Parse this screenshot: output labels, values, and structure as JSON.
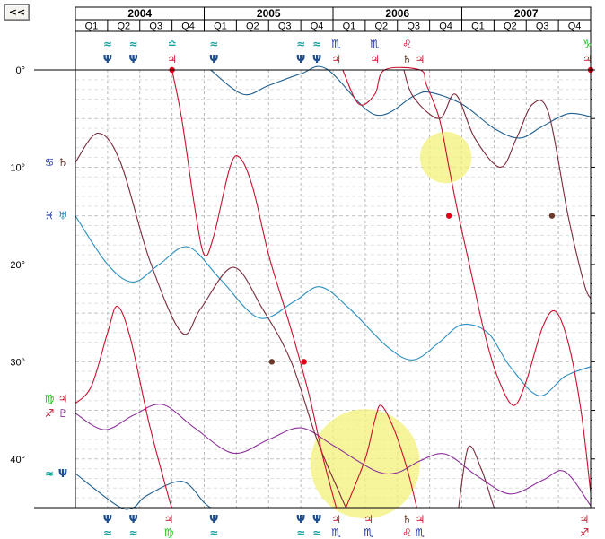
{
  "nav": {
    "back_label": "<<"
  },
  "chart_data": {
    "type": "line",
    "title": "",
    "xlabel": "",
    "ylabel": "",
    "years": [
      "2004",
      "2005",
      "2006",
      "2007"
    ],
    "quarters": [
      "Q1",
      "Q2",
      "Q3",
      "Q4"
    ],
    "x_unit": "quarter index from start of 2004",
    "xlim": [
      0,
      16
    ],
    "ylim": [
      0,
      45
    ],
    "y_ticks": [
      {
        "v": 0,
        "label": "0°"
      },
      {
        "v": 10,
        "label": "10°"
      },
      {
        "v": 20,
        "label": "20°"
      },
      {
        "v": 30,
        "label": "30°"
      },
      {
        "v": 40,
        "label": "40°"
      }
    ],
    "grid": true,
    "series": [
      {
        "color": "#1f5f8f",
        "points": [
          [
            0,
            41.5
          ],
          [
            1.3,
            44.8
          ],
          [
            1.8,
            45
          ],
          [
            2.2,
            43.8
          ],
          [
            3.3,
            42.3
          ],
          [
            4.0,
            44.5
          ],
          [
            4.2,
            45
          ]
        ],
        "points2": [
          [
            4.2,
            0
          ],
          [
            5.2,
            2.5
          ],
          [
            6.0,
            1.6
          ],
          [
            7.0,
            0.4
          ],
          [
            7.8,
            -0.1
          ],
          [
            9.3,
            4.6
          ],
          [
            10.5,
            2.7
          ],
          [
            11.0,
            2.3
          ],
          [
            12.0,
            3.5
          ],
          [
            13.0,
            6.0
          ],
          [
            13.8,
            7.0
          ],
          [
            14.5,
            5.8
          ],
          [
            15.3,
            4.5
          ],
          [
            16,
            4.8
          ]
        ]
      },
      {
        "color": "#2a8fc0",
        "points": [
          [
            0,
            15
          ],
          [
            1.0,
            20
          ],
          [
            1.8,
            21.8
          ],
          [
            2.6,
            20
          ],
          [
            3.5,
            18.2
          ],
          [
            4.5,
            21.5
          ],
          [
            5.7,
            25.5
          ],
          [
            6.8,
            23.8
          ],
          [
            7.6,
            22.3
          ],
          [
            8.5,
            24.5
          ],
          [
            9.7,
            28.5
          ],
          [
            10.5,
            29.8
          ],
          [
            11.3,
            28.0
          ],
          [
            12.0,
            26.2
          ],
          [
            12.8,
            27.0
          ],
          [
            13.5,
            30.5
          ],
          [
            14.4,
            33.5
          ],
          [
            15.2,
            31.5
          ],
          [
            16,
            30.5
          ]
        ]
      },
      {
        "color": "#8b2f99",
        "points": [
          [
            0,
            35.3
          ],
          [
            0.9,
            37.0
          ],
          [
            1.8,
            35.5
          ],
          [
            2.7,
            34.4
          ],
          [
            3.7,
            36.8
          ],
          [
            4.9,
            39.4
          ],
          [
            6.0,
            38.0
          ],
          [
            7.0,
            36.8
          ],
          [
            8.0,
            38.6
          ],
          [
            9.3,
            41.2
          ],
          [
            10.0,
            41.4
          ],
          [
            10.7,
            40.2
          ],
          [
            11.5,
            39.5
          ],
          [
            12.5,
            41.8
          ],
          [
            13.5,
            43.6
          ],
          [
            14.5,
            42.2
          ],
          [
            15.2,
            41.3
          ],
          [
            16,
            44.8
          ]
        ]
      },
      {
        "color": "#7a2a3a",
        "points": [
          [
            0,
            9.5
          ],
          [
            0.7,
            6.5
          ],
          [
            1.4,
            9.5
          ],
          [
            2.3,
            19.5
          ],
          [
            3.3,
            27.0
          ],
          [
            3.9,
            24.5
          ],
          [
            4.9,
            20.3
          ],
          [
            5.8,
            24.5
          ],
          [
            6.7,
            30.0
          ],
          [
            7.5,
            38.0
          ],
          [
            8.2,
            43.5
          ],
          [
            8.4,
            45
          ]
        ],
        "points2": [
          [
            10.2,
            0
          ],
          [
            10.5,
            2.8
          ],
          [
            11.3,
            5.0
          ],
          [
            11.8,
            2.5
          ],
          [
            12.4,
            7.0
          ],
          [
            13.2,
            10.0
          ],
          [
            13.7,
            7.0
          ],
          [
            14.2,
            3.5
          ],
          [
            14.7,
            4.5
          ],
          [
            15.3,
            15.0
          ],
          [
            15.8,
            22.0
          ],
          [
            16,
            23.5
          ]
        ],
        "points3": [
          [
            11.9,
            45
          ],
          [
            12.2,
            38.8
          ],
          [
            12.6,
            41.0
          ],
          [
            12.9,
            44.0
          ],
          [
            13.0,
            45
          ]
        ]
      },
      {
        "color": "#c8102e",
        "points": [
          [
            0,
            34.3
          ],
          [
            0.5,
            32.5
          ],
          [
            1.0,
            27.0
          ],
          [
            1.3,
            24.3
          ],
          [
            1.7,
            27.5
          ],
          [
            2.3,
            36.5
          ],
          [
            2.9,
            44.0
          ],
          [
            3.0,
            45
          ]
        ],
        "points2": [
          [
            3.0,
            0
          ],
          [
            3.3,
            5.0
          ],
          [
            3.7,
            14.0
          ],
          [
            4.0,
            19.0
          ],
          [
            4.3,
            17.0
          ],
          [
            4.8,
            10.0
          ],
          [
            5.1,
            9.0
          ],
          [
            5.5,
            12.0
          ],
          [
            6.0,
            19.0
          ],
          [
            6.5,
            24.5
          ],
          [
            6.9,
            29.0
          ],
          [
            7.3,
            34.0
          ],
          [
            7.7,
            40.0
          ],
          [
            8.1,
            45
          ]
        ],
        "points3": [
          [
            8.3,
            0
          ],
          [
            8.8,
            3.5
          ],
          [
            9.3,
            2.5
          ],
          [
            9.6,
            0
          ],
          [
            10.7,
            0
          ],
          [
            10.9,
            1.5
          ],
          [
            11.3,
            5.0
          ],
          [
            11.6,
            10.0
          ],
          [
            11.9,
            15.0
          ],
          [
            12.3,
            21.0
          ],
          [
            12.7,
            27.0
          ],
          [
            13.1,
            31.5
          ],
          [
            13.6,
            34.5
          ],
          [
            14.0,
            32.0
          ],
          [
            14.5,
            26.5
          ],
          [
            14.9,
            24.8
          ],
          [
            15.3,
            28.0
          ],
          [
            15.7,
            35.0
          ],
          [
            16,
            43.5
          ]
        ],
        "points4": [
          [
            8.4,
            45
          ],
          [
            9.0,
            40.0
          ],
          [
            9.3,
            36.0
          ],
          [
            9.5,
            34.5
          ],
          [
            9.9,
            37.0
          ],
          [
            10.3,
            41.0
          ],
          [
            10.6,
            45
          ]
        ]
      }
    ],
    "dots": [
      {
        "x": 3.0,
        "y": 0,
        "color": "#e0001a"
      },
      {
        "x": 6.1,
        "y": 30,
        "color": "#6b3a2a"
      },
      {
        "x": 7.1,
        "y": 30,
        "color": "#e0001a"
      },
      {
        "x": 11.6,
        "y": 15,
        "color": "#e0001a"
      },
      {
        "x": 14.8,
        "y": 15,
        "color": "#6b3a2a"
      },
      {
        "x": 16,
        "y": 0,
        "color": "#e0001a"
      }
    ],
    "highlights": [
      {
        "x": 11.5,
        "y": 9,
        "r": 0.8
      },
      {
        "x": 9.0,
        "y": 40.5,
        "r": 1.7
      }
    ],
    "top_markers": [
      {
        "x": 1.0,
        "sign": "≈",
        "planet": "Ψ",
        "sc": "#1aa0a0",
        "pc": "#1f4f8f"
      },
      {
        "x": 1.8,
        "sign": "≈",
        "planet": "Ψ",
        "sc": "#1aa0a0",
        "pc": "#1f4f8f"
      },
      {
        "x": 3.0,
        "sign": "≏",
        "planet": "♃",
        "sc": "#1aa0a0",
        "pc": "#c8102e"
      },
      {
        "x": 4.3,
        "sign": "≈",
        "planet": "Ψ",
        "sc": "#1aa0a0",
        "pc": "#1f4f8f"
      },
      {
        "x": 7.0,
        "sign": "≈",
        "planet": "Ψ",
        "sc": "#1aa0a0",
        "pc": "#1f4f8f"
      },
      {
        "x": 7.5,
        "sign": "≈",
        "planet": "Ψ",
        "sc": "#1aa0a0",
        "pc": "#1f4f8f"
      },
      {
        "x": 8.1,
        "sign": "♏",
        "planet": "♃",
        "sc": "#1a2fa0",
        "pc": "#c8102e"
      },
      {
        "x": 9.3,
        "sign": "♏",
        "planet": "♃",
        "sc": "#1a2fa0",
        "pc": "#c8102e"
      },
      {
        "x": 10.3,
        "sign": "♌",
        "planet": "♄",
        "sc": "#c8102e",
        "pc": "#6b3a2a"
      },
      {
        "x": 10.7,
        "sign": "",
        "planet": "♃",
        "sc": "#c8102e",
        "pc": "#c8102e"
      },
      {
        "x": 15.9,
        "sign": "♑",
        "planet": "♃",
        "sc": "#19c019",
        "pc": "#c8102e"
      }
    ],
    "bottom_markers": [
      {
        "x": 1.0,
        "sign": "≈",
        "planet": "Ψ",
        "sc": "#1aa0a0",
        "pc": "#1f4f8f"
      },
      {
        "x": 1.8,
        "sign": "≈",
        "planet": "Ψ",
        "sc": "#1aa0a0",
        "pc": "#1f4f8f"
      },
      {
        "x": 2.9,
        "sign": "♍",
        "planet": "♃",
        "sc": "#19c019",
        "pc": "#c8102e"
      },
      {
        "x": 4.3,
        "sign": "≈",
        "planet": "Ψ",
        "sc": "#1aa0a0",
        "pc": "#1f4f8f"
      },
      {
        "x": 7.0,
        "sign": "≈",
        "planet": "Ψ",
        "sc": "#1aa0a0",
        "pc": "#1f4f8f"
      },
      {
        "x": 7.5,
        "sign": "≈",
        "planet": "Ψ",
        "sc": "#1aa0a0",
        "pc": "#1f4f8f"
      },
      {
        "x": 8.1,
        "sign": "♏",
        "planet": "♃",
        "sc": "#1a2fa0",
        "pc": "#c8102e"
      },
      {
        "x": 9.1,
        "sign": "♏",
        "planet": "♃",
        "sc": "#1a2fa0",
        "pc": "#c8102e"
      },
      {
        "x": 10.3,
        "sign": "♌",
        "planet": "♄",
        "sc": "#c8102e",
        "pc": "#6b3a2a"
      },
      {
        "x": 10.7,
        "sign": "♏",
        "planet": "♃",
        "sc": "#1a2fa0",
        "pc": "#c8102e"
      },
      {
        "x": 15.8,
        "sign": "♐",
        "planet": "♃",
        "sc": "#c8102e",
        "pc": "#c8102e"
      }
    ],
    "left_markers": [
      {
        "y": 9.5,
        "sign": "♋",
        "planet": "♄",
        "sc": "#1a2fa0",
        "pc": "#6b3a2a"
      },
      {
        "y": 15,
        "sign": "♓",
        "planet": "♅",
        "sc": "#1a2fa0",
        "pc": "#2a8fc0"
      },
      {
        "y": 33.8,
        "sign": "♍",
        "planet": "♃",
        "sc": "#19c019",
        "pc": "#c8102e"
      },
      {
        "y": 35.3,
        "sign": "♐",
        "planet": "♇",
        "sc": "#c8102e",
        "pc": "#8b2f99"
      },
      {
        "y": 41.5,
        "sign": "≈",
        "planet": "Ψ",
        "sc": "#1aa0a0",
        "pc": "#1f4f8f"
      }
    ]
  }
}
